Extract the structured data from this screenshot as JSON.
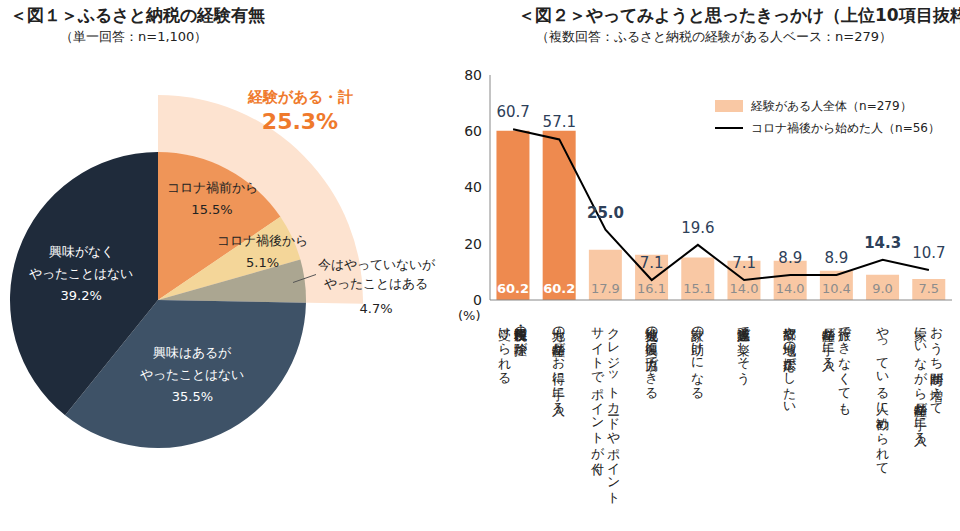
{
  "chart_data": [
    {
      "type": "pie",
      "title": "＜図１＞ふるさと納税の経験有無",
      "subtitle": "（単一回答：n=1,100）",
      "categories": [
        "コロナ禍前から",
        "コロナ禍後から",
        "今はやっていないが\nやったことはある",
        "興味はあるが\nやったことはない",
        "興味がなく\nやったことはない"
      ],
      "values": [
        15.5,
        5.1,
        4.7,
        35.5,
        39.2
      ],
      "value_labels": [
        "15.5%",
        "5.1%",
        "4.7%",
        "35.5%",
        "39.2%"
      ],
      "colors": [
        "#ef9558",
        "#f4d699",
        "#aba691",
        "#3e5267",
        "#1f2b3b"
      ],
      "annotations": [
        {
          "text": "経験がある・計",
          "value": 25.3,
          "label": "25.3%",
          "color": "#ef7a2c"
        }
      ]
    },
    {
      "type": "bar",
      "title": "＜図２＞やってみようと思ったきっかけ（上位10項目抜粋）",
      "subtitle": "（複数回答：ふるさと納税の経験がある人ベース：n=279）",
      "categories": [
        "住民税・所得税の控除が\n受けられる",
        "地方の特産品がお得に手に入る",
        "クレジットカードやポイント\nサイトでポイントが付く",
        "被災地の復興に協力できる",
        "家計の助けになる",
        "通販感覚で楽しそう",
        "故郷や地域の応援がしたい",
        "旅行できなくても\n特産品が手に入る",
        "やっている人に勧められて",
        "おうち時間が増えて\n家にいながら特産品が手に入る"
      ],
      "series": [
        {
          "name": "経験がある人全体（n=279）",
          "type": "bar",
          "color": "#f9c8a4",
          "colors": [
            "#ee8a4f",
            "#ee8a4f",
            "#f9c8a4",
            "#f9c8a4",
            "#f9c8a4",
            "#f9c8a4",
            "#f9c8a4",
            "#f9c8a4",
            "#f9c8a4",
            "#f9c8a4"
          ],
          "values": [
            60.2,
            60.2,
            17.9,
            16.1,
            15.1,
            14.0,
            14.0,
            10.4,
            9.0,
            7.5
          ],
          "value_labels": [
            "60.2",
            "60.2",
            "17.9",
            "16.1",
            "15.1",
            "14.0",
            "14.0",
            "10.4",
            "9.0",
            "7.5"
          ]
        },
        {
          "name": "コロナ禍後から始めた人（n=56）",
          "type": "line",
          "color": "#000000",
          "marker": "none",
          "values": [
            60.7,
            57.1,
            25.0,
            7.1,
            19.6,
            7.1,
            8.9,
            8.9,
            14.3,
            10.7
          ],
          "value_labels": [
            "60.7",
            "57.1",
            "25.0",
            "7.1",
            "19.6",
            "7.1",
            "8.9",
            "8.9",
            "14.3",
            "10.7"
          ]
        }
      ],
      "ylim": [
        0,
        80
      ],
      "yticks": [
        0,
        20,
        40,
        60,
        80
      ],
      "ylabel": "(%)",
      "legend": "upper right",
      "data_labels": true,
      "grid": false
    }
  ]
}
